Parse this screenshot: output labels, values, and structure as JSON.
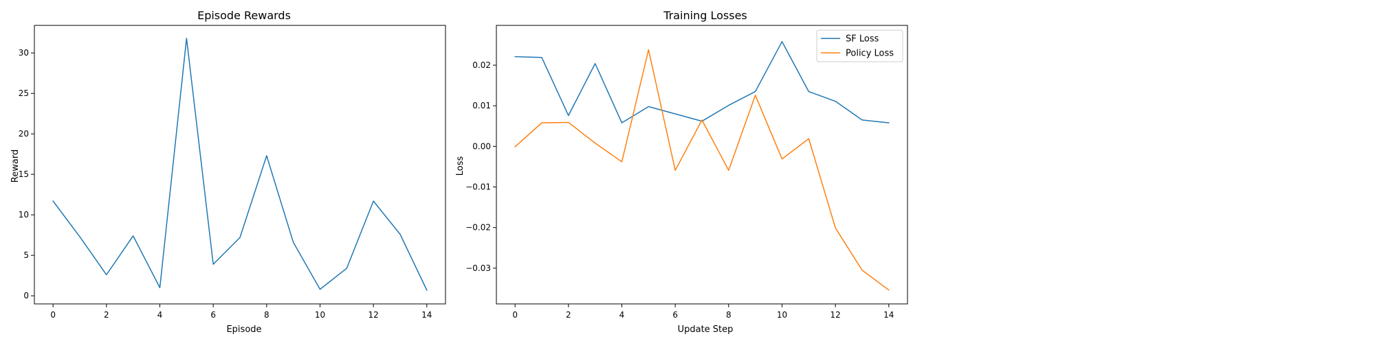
{
  "chart_data": [
    {
      "type": "line",
      "title": "Episode Rewards",
      "xlabel": "Episode",
      "ylabel": "Reward",
      "xlim": [
        -0.7,
        14.7
      ],
      "ylim": [
        -1.0,
        33.4
      ],
      "xticks": [
        0,
        2,
        4,
        6,
        8,
        10,
        12,
        14
      ],
      "yticks": [
        0,
        5,
        10,
        15,
        20,
        25,
        30
      ],
      "ytick_labels": [
        "0",
        "5",
        "10",
        "15",
        "20",
        "25",
        "30"
      ],
      "legend": null,
      "grid": false,
      "series": [
        {
          "color": "#1f77b4",
          "x": [
            0,
            1,
            2,
            3,
            4,
            5,
            6,
            7,
            8,
            9,
            10,
            11,
            12,
            13,
            14
          ],
          "values": [
            11.7,
            7.3,
            2.6,
            7.4,
            1.0,
            31.8,
            3.9,
            7.2,
            17.3,
            6.6,
            0.8,
            3.4,
            11.7,
            7.6,
            0.7
          ]
        }
      ]
    },
    {
      "type": "line",
      "title": "Training Losses",
      "xlabel": "Update Step",
      "ylabel": "Loss",
      "xlim": [
        -0.7,
        14.7
      ],
      "ylim": [
        -0.0388,
        0.0298
      ],
      "xticks": [
        0,
        2,
        4,
        6,
        8,
        10,
        12,
        14
      ],
      "yticks": [
        -0.03,
        -0.02,
        -0.01,
        0.0,
        0.01,
        0.02
      ],
      "ytick_labels": [
        "−0.03",
        "−0.02",
        "−0.01",
        "0.00",
        "0.01",
        "0.02"
      ],
      "legend": "top-right",
      "grid": false,
      "series": [
        {
          "name": "SF Loss",
          "color": "#1f77b4",
          "x": [
            0,
            1,
            2,
            3,
            4,
            5,
            6,
            7,
            8,
            9,
            10,
            11,
            12,
            13,
            14
          ],
          "values": [
            0.0221,
            0.0219,
            0.0076,
            0.0204,
            0.0058,
            0.0098,
            0.008,
            0.0062,
            0.0101,
            0.0135,
            0.0258,
            0.0135,
            0.0111,
            0.0065,
            0.0058
          ]
        },
        {
          "name": "Policy Loss",
          "color": "#ff7f0e",
          "x": [
            0,
            1,
            2,
            3,
            4,
            5,
            6,
            7,
            8,
            9,
            10,
            11,
            12,
            13,
            14
          ],
          "values": [
            -0.0001,
            0.0058,
            0.0059,
            0.0008,
            -0.0038,
            0.0238,
            -0.0059,
            0.0065,
            -0.0059,
            0.0126,
            -0.0031,
            0.0019,
            -0.0201,
            -0.0305,
            -0.0354
          ]
        }
      ]
    }
  ]
}
